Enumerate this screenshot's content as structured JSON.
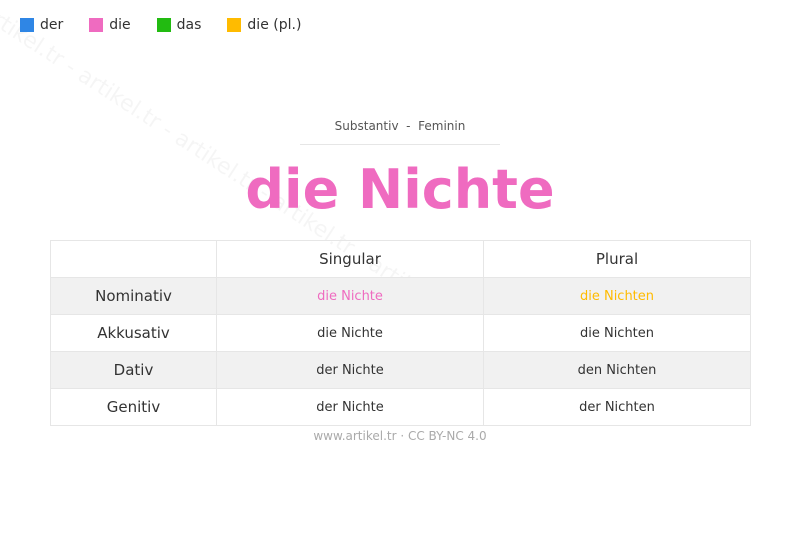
{
  "legend": [
    {
      "label": "der",
      "color": "#2f86e5"
    },
    {
      "label": "die",
      "color": "#ef6bc0"
    },
    {
      "label": "das",
      "color": "#22bb11"
    },
    {
      "label": "die (pl.)",
      "color": "#ffbb00"
    }
  ],
  "watermark": "artikel.tr - artikel.tr - artikel.tr - artikel.tr - artikel",
  "subtitle": "Substantiv  -  Feminin",
  "title": "die Nichte",
  "table": {
    "headers": [
      "",
      "Singular",
      "Plural"
    ],
    "rows": [
      {
        "case": "Nominativ",
        "singular": "die Nichte",
        "plural": "die Nichten"
      },
      {
        "case": "Akkusativ",
        "singular": "die Nichte",
        "plural": "die Nichten"
      },
      {
        "case": "Dativ",
        "singular": "der Nichte",
        "plural": "den Nichten"
      },
      {
        "case": "Genitiv",
        "singular": "der Nichte",
        "plural": "der Nichten"
      }
    ]
  },
  "highlight_colors": {
    "singular": "#ef6bc0",
    "plural": "#ffbb00"
  },
  "footer": "www.artikel.tr · CC BY-NC 4.0"
}
